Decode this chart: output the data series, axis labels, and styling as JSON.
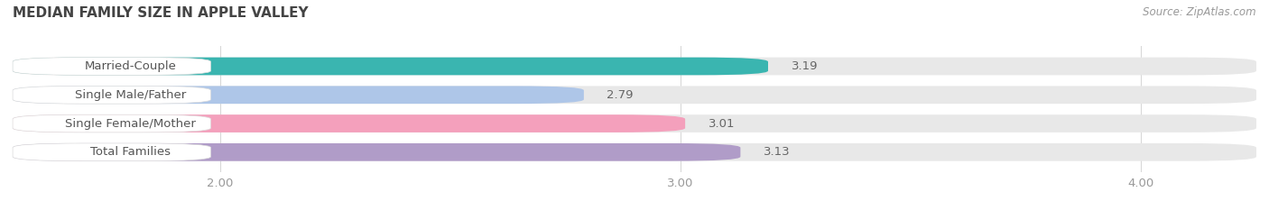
{
  "title": "MEDIAN FAMILY SIZE IN APPLE VALLEY",
  "source": "Source: ZipAtlas.com",
  "categories": [
    "Married-Couple",
    "Single Male/Father",
    "Single Female/Mother",
    "Total Families"
  ],
  "values": [
    3.19,
    2.79,
    3.01,
    3.13
  ],
  "colors": [
    "#3ab5b0",
    "#aec6e8",
    "#f4a0bc",
    "#b09cc8"
  ],
  "xlim": [
    1.55,
    4.25
  ],
  "xticks": [
    2.0,
    3.0,
    4.0
  ],
  "xtick_labels": [
    "2.00",
    "3.00",
    "4.00"
  ],
  "bar_height": 0.62,
  "label_fontsize": 9.5,
  "value_fontsize": 9.5,
  "title_fontsize": 11,
  "source_fontsize": 8.5,
  "bg_color": "#ffffff",
  "bar_bg_color": "#e8e8e8",
  "label_bg_color": "#ffffff",
  "grid_color": "#d8d8d8",
  "text_color": "#555555",
  "title_color": "#444444",
  "source_color": "#999999",
  "value_color": "#666666"
}
